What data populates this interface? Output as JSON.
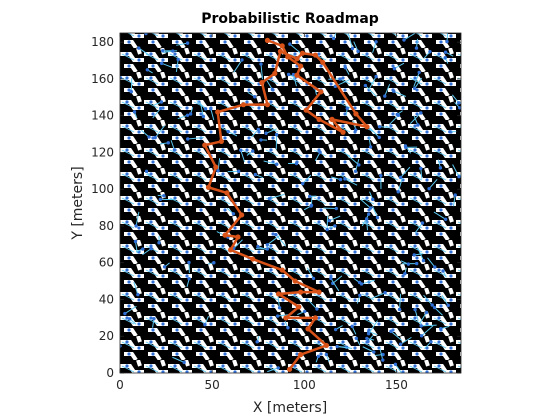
{
  "chart_data": {
    "type": "map",
    "title": "Probabilistic Roadmap",
    "xlabel": "X [meters]",
    "ylabel": "Y [meters]",
    "xlim": [
      0,
      185
    ],
    "ylim": [
      0,
      185
    ],
    "xticks": [
      0,
      50,
      100,
      150
    ],
    "yticks": [
      0,
      20,
      40,
      60,
      80,
      100,
      120,
      140,
      160,
      180
    ],
    "grid": false,
    "colors": {
      "obstacle": "#000000",
      "free_space": "#ffffff",
      "roadmap_nodes": "#2f6fd6",
      "roadmap_edges": "#5bc8f0",
      "path": "#d95319"
    },
    "path": {
      "x": [
        92,
        98,
        112,
        102,
        106,
        90,
        97,
        86,
        98,
        108,
        95,
        88,
        72,
        60,
        64,
        57,
        66,
        58,
        48,
        52,
        46,
        55,
        53,
        67,
        80,
        77,
        84,
        87,
        96,
        99,
        106,
        110,
        128,
        134,
        115,
        121,
        108,
        101,
        109,
        96,
        98,
        91,
        88,
        80
      ],
      "y": [
        2,
        10,
        15,
        24,
        30,
        30,
        36,
        43,
        44,
        44,
        50,
        56,
        62,
        67,
        74,
        75,
        86,
        98,
        101,
        112,
        124,
        126,
        142,
        146,
        146,
        158,
        163,
        175,
        171,
        174,
        173,
        169,
        141,
        134,
        138,
        131,
        138,
        143,
        153,
        162,
        167,
        172,
        178,
        181
      ]
    }
  }
}
